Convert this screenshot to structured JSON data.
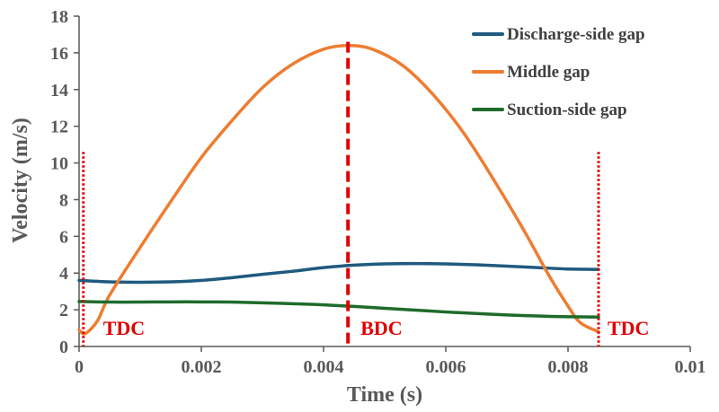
{
  "chart_data": {
    "type": "line",
    "xlabel": "Time (s)",
    "ylabel": "Velocity (m/s)",
    "xlim": [
      0,
      0.01
    ],
    "ylim": [
      0,
      18
    ],
    "x_ticks": [
      0,
      0.002,
      0.004,
      0.006,
      0.008,
      0.01
    ],
    "x_tick_labels": [
      "0",
      "0.002",
      "0.004",
      "0.006",
      "0.008",
      "0.01"
    ],
    "y_ticks": [
      0,
      2,
      4,
      6,
      8,
      10,
      12,
      14,
      16,
      18
    ],
    "y_tick_labels": [
      "0",
      "2",
      "4",
      "6",
      "8",
      "10",
      "12",
      "14",
      "16",
      "18"
    ],
    "grid": false,
    "legend_position": "top-right",
    "series": [
      {
        "name": "Discharge-side gap",
        "color": "#1f5a7f",
        "points": [
          [
            0,
            3.6
          ],
          [
            0.0005,
            3.52
          ],
          [
            0.001,
            3.5
          ],
          [
            0.0015,
            3.52
          ],
          [
            0.002,
            3.6
          ],
          [
            0.0025,
            3.75
          ],
          [
            0.003,
            3.93
          ],
          [
            0.0035,
            4.1
          ],
          [
            0.004,
            4.3
          ],
          [
            0.0045,
            4.43
          ],
          [
            0.005,
            4.5
          ],
          [
            0.0055,
            4.52
          ],
          [
            0.006,
            4.5
          ],
          [
            0.0065,
            4.45
          ],
          [
            0.007,
            4.38
          ],
          [
            0.0075,
            4.3
          ],
          [
            0.008,
            4.22
          ],
          [
            0.0085,
            4.2
          ]
        ]
      },
      {
        "name": "Middle gap",
        "color": "#ed7d31",
        "points": [
          [
            0,
            0.9
          ],
          [
            0.0001,
            0.7
          ],
          [
            0.0003,
            1.4
          ],
          [
            0.0005,
            2.8
          ],
          [
            0.001,
            5.4
          ],
          [
            0.0015,
            7.9
          ],
          [
            0.002,
            10.3
          ],
          [
            0.0025,
            12.3
          ],
          [
            0.003,
            14.1
          ],
          [
            0.0035,
            15.4
          ],
          [
            0.004,
            16.2
          ],
          [
            0.0044,
            16.4
          ],
          [
            0.0048,
            16.2
          ],
          [
            0.0053,
            15.3
          ],
          [
            0.0058,
            13.7
          ],
          [
            0.0063,
            11.6
          ],
          [
            0.0068,
            9.0
          ],
          [
            0.0073,
            6.2
          ],
          [
            0.0077,
            3.8
          ],
          [
            0.008,
            2.2
          ],
          [
            0.0082,
            1.3
          ],
          [
            0.0085,
            0.8
          ]
        ]
      },
      {
        "name": "Suction-side gap",
        "color": "#1e6b2c",
        "points": [
          [
            0,
            2.45
          ],
          [
            0.0005,
            2.42
          ],
          [
            0.001,
            2.42
          ],
          [
            0.0015,
            2.43
          ],
          [
            0.002,
            2.43
          ],
          [
            0.0025,
            2.42
          ],
          [
            0.003,
            2.38
          ],
          [
            0.0035,
            2.33
          ],
          [
            0.004,
            2.27
          ],
          [
            0.0045,
            2.18
          ],
          [
            0.005,
            2.08
          ],
          [
            0.0055,
            1.98
          ],
          [
            0.006,
            1.88
          ],
          [
            0.0065,
            1.8
          ],
          [
            0.007,
            1.72
          ],
          [
            0.0075,
            1.66
          ],
          [
            0.008,
            1.62
          ],
          [
            0.0085,
            1.6
          ]
        ]
      }
    ],
    "markers": [
      {
        "x": 7e-05,
        "label": "TDC",
        "style": "dotted",
        "y_top": 10.6
      },
      {
        "x": 0.0044,
        "label": "BDC",
        "style": "dashed",
        "y_top": 16.6
      },
      {
        "x": 0.0085,
        "label": "TDC",
        "style": "dotted",
        "y_top": 10.6
      }
    ],
    "marker_color": "#e00000"
  }
}
